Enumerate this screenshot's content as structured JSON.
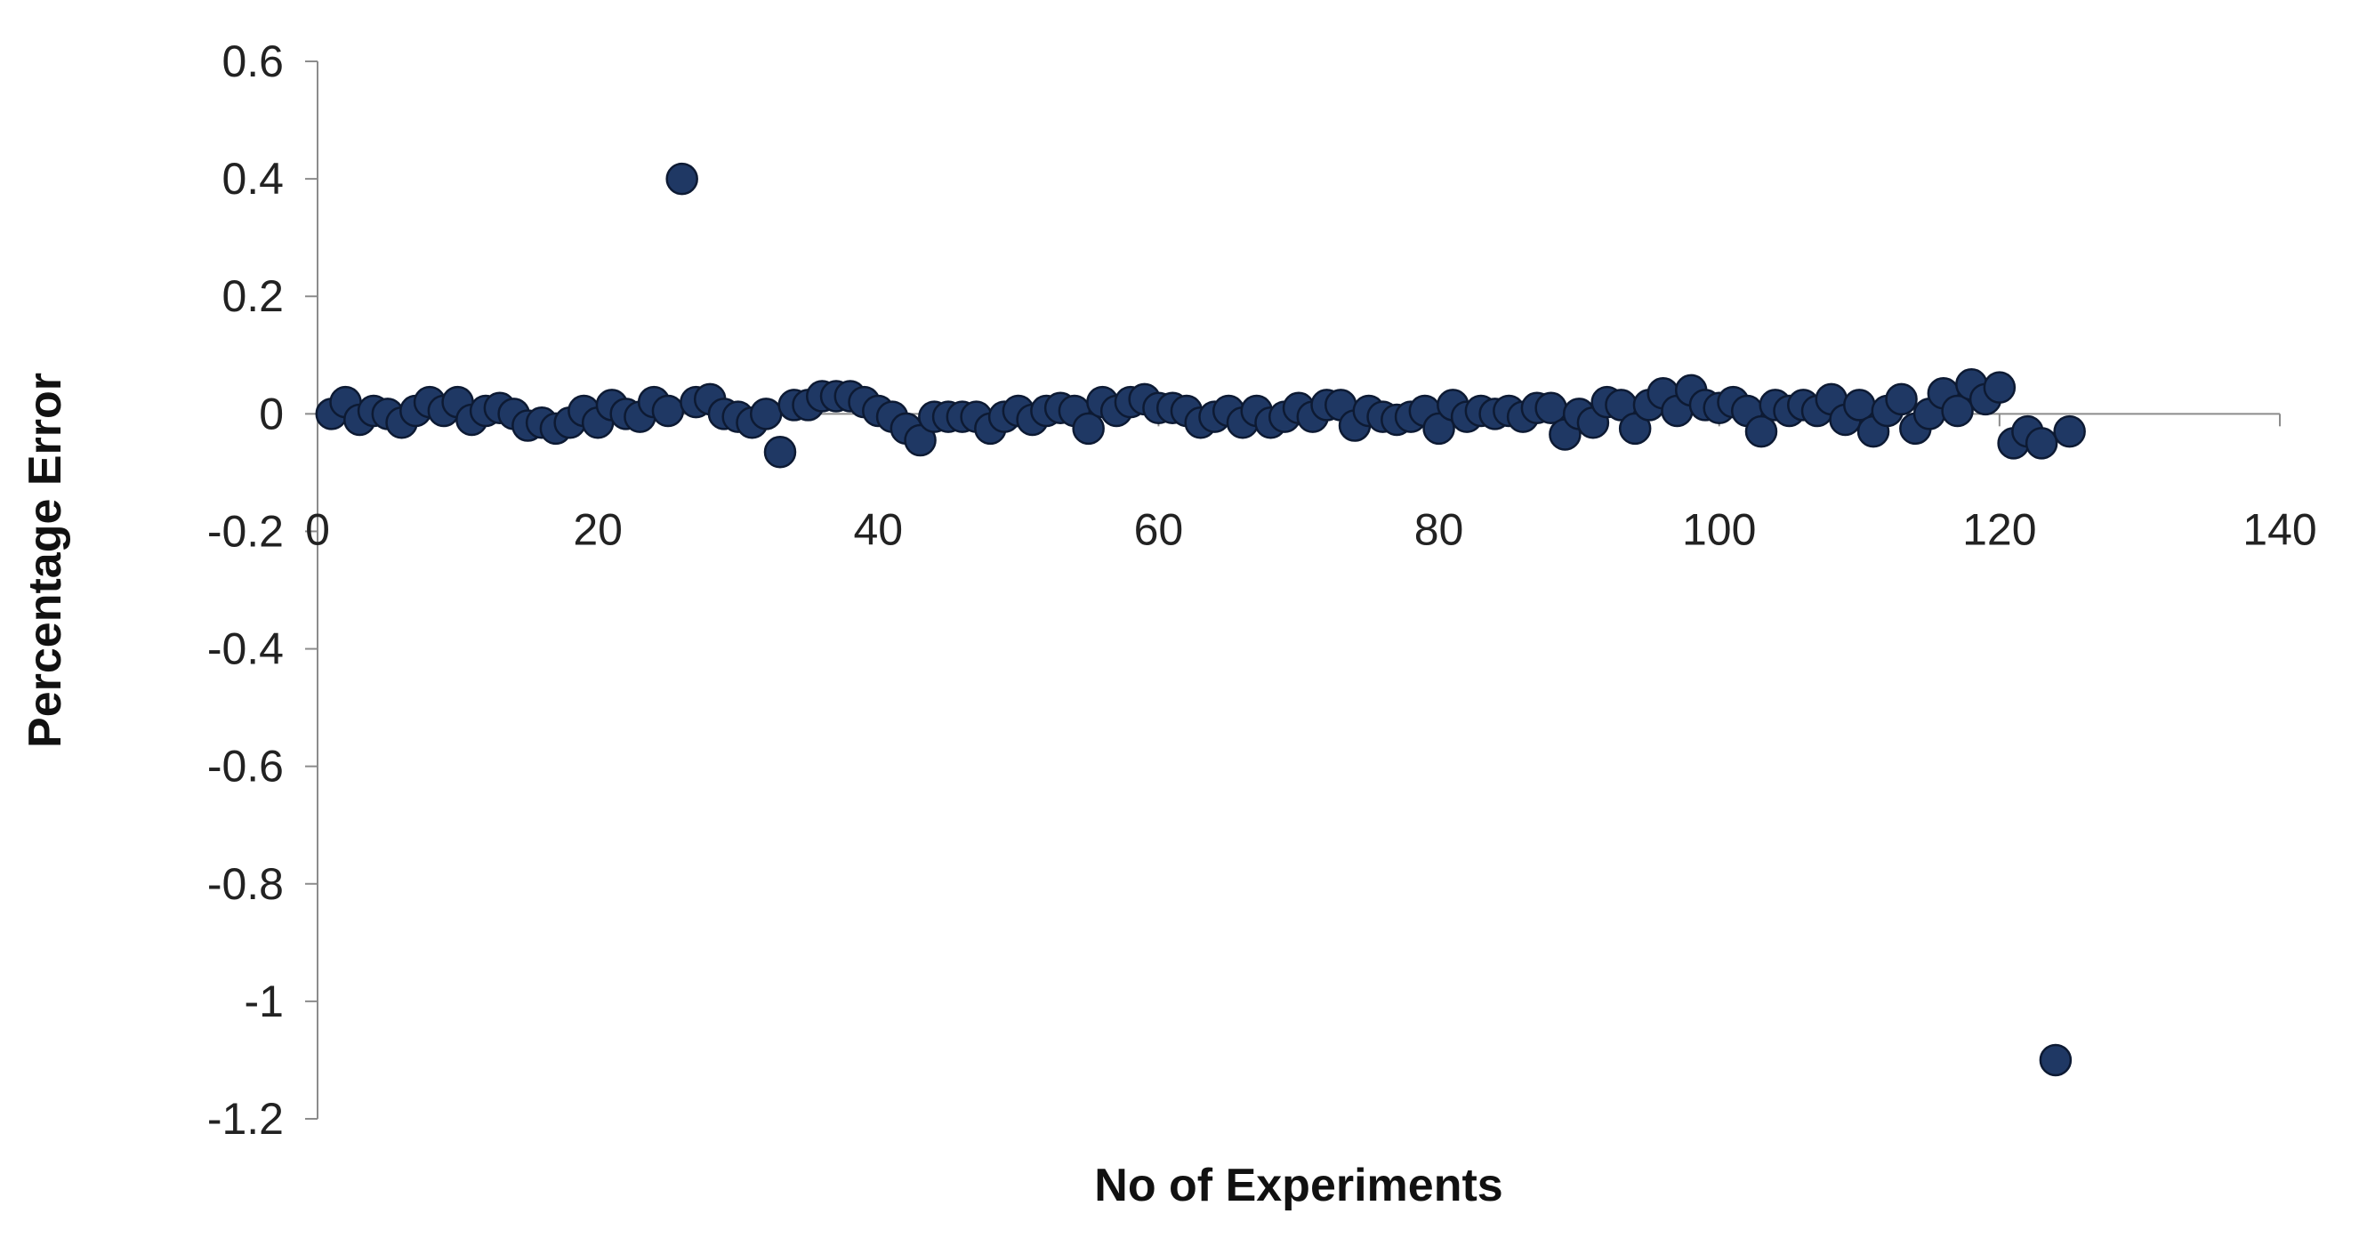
{
  "chart_data": {
    "type": "scatter",
    "xlabel": "No of Experiments",
    "ylabel": "Percentage Error",
    "xlim": [
      0,
      140
    ],
    "ylim": [
      -1.2,
      0.6
    ],
    "x_ticks": [
      "0",
      "20",
      "40",
      "60",
      "80",
      "100",
      "120",
      "140"
    ],
    "y_ticks": [
      "0.6",
      "0.4",
      "0.2",
      "0",
      "-0.2",
      "-0.4",
      "-0.6",
      "-0.8",
      "-1",
      "-1.2"
    ],
    "grid": false,
    "legend": "none",
    "marker_color": "#1f3864",
    "series": [
      {
        "x": [
          1,
          2,
          3,
          4,
          5,
          6,
          7,
          8,
          9,
          10,
          11,
          12,
          13,
          14,
          15,
          16,
          17,
          18,
          19,
          20,
          21,
          22,
          23,
          24,
          25,
          26,
          27,
          28,
          29,
          30,
          31,
          32,
          33,
          34,
          35,
          36,
          37,
          38,
          39,
          40,
          41,
          42,
          43,
          44,
          45,
          46,
          47,
          48,
          49,
          50,
          51,
          52,
          53,
          54,
          55,
          56,
          57,
          58,
          59,
          60,
          61,
          62,
          63,
          64,
          65,
          66,
          67,
          68,
          69,
          70,
          71,
          72,
          73,
          74,
          75,
          76,
          77,
          78,
          79,
          80,
          81,
          82,
          83,
          84,
          85,
          86,
          87,
          88,
          89,
          90,
          91,
          92,
          93,
          94,
          95,
          96,
          97,
          98,
          99,
          100,
          101,
          102,
          103,
          104,
          105,
          106,
          107,
          108,
          109,
          110,
          111,
          112,
          113,
          114,
          115,
          116,
          117,
          118,
          119,
          120,
          121,
          122,
          123,
          124,
          125
        ],
        "y": [
          0,
          0.02,
          -0.01,
          0.005,
          0,
          -0.015,
          0.005,
          0.02,
          0.005,
          0.02,
          -0.01,
          0.005,
          0.01,
          0,
          -0.02,
          -0.015,
          -0.025,
          -0.015,
          0.005,
          -0.015,
          0.015,
          0,
          -0.005,
          0.02,
          0.005,
          0.4,
          0.02,
          0.025,
          0,
          -0.005,
          -0.015,
          0,
          -0.065,
          0.015,
          0.015,
          0.03,
          0.03,
          0.03,
          0.02,
          0.005,
          -0.005,
          -0.025,
          -0.045,
          -0.005,
          -0.005,
          -0.005,
          -0.005,
          -0.025,
          -0.005,
          0.005,
          -0.01,
          0.005,
          0.01,
          0.005,
          -0.025,
          0.02,
          0.005,
          0.02,
          0.025,
          0.01,
          0.01,
          0.005,
          -0.015,
          -0.005,
          0.005,
          -0.015,
          0.005,
          -0.015,
          -0.005,
          0.01,
          -0.005,
          0.015,
          0.015,
          -0.02,
          0.005,
          -0.005,
          -0.01,
          -0.005,
          0.005,
          -0.025,
          0.015,
          -0.005,
          0.005,
          0,
          0.005,
          -0.005,
          0.01,
          0.01,
          -0.035,
          0,
          -0.015,
          0.02,
          0.015,
          -0.025,
          0.015,
          0.035,
          0.005,
          0.04,
          0.015,
          0.01,
          0.02,
          0.005,
          -0.03,
          0.015,
          0.005,
          0.015,
          0.005,
          0.025,
          -0.01,
          0.015,
          -0.03,
          0.005,
          0.025,
          -0.025,
          0,
          0.035,
          0.005,
          0.05,
          0.025,
          0.045,
          -0.05,
          -0.03,
          -0.05,
          -1.1,
          -0.03
        ]
      }
    ]
  }
}
